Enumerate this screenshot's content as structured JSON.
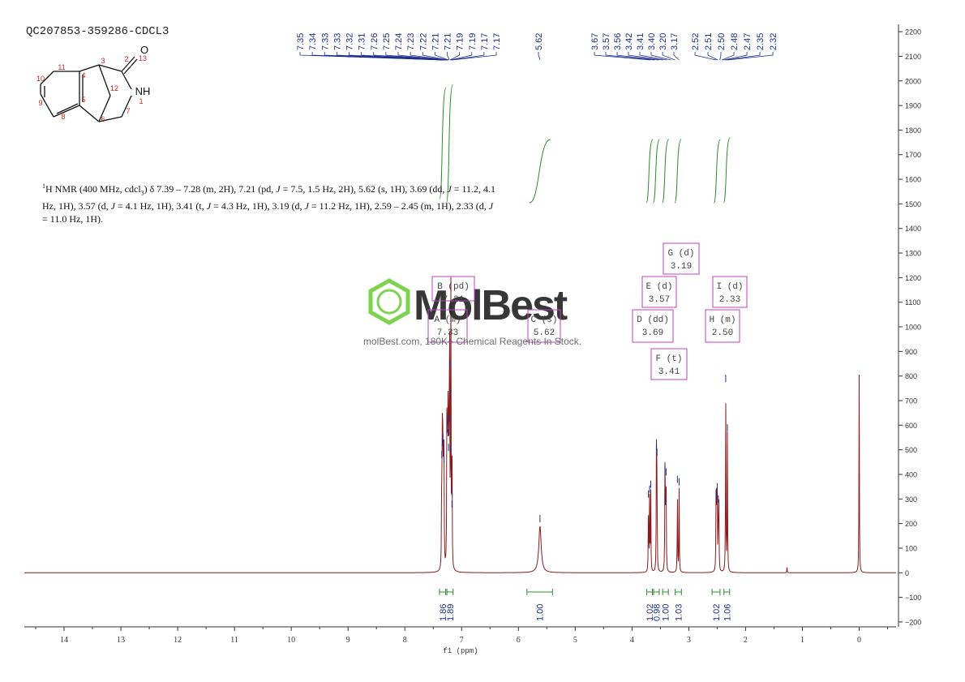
{
  "sample_id": "QC207853-359286-CDCL3",
  "nmr_description": {
    "p1": "H NMR (400 MHz, cdcl",
    "sub3": "3",
    "p2": ") δ 7.39 – 7.28 (m, 2H), 7.21 (pd, ",
    "j": "J",
    "p3": " = 7.5, 1.5 Hz, 2H), 5.62 (s, 1H), 3.69 (dd, ",
    "p4": " = 11.2, 4.1 Hz, 1H), 3.57 (d, ",
    "p5": " = 4.1 Hz, 1H), 3.41 (t, ",
    "p6": " = 4.3 Hz, 1H), 3.19 (d, ",
    "p7": " = 11.2 Hz, 1H), 2.59 – 2.45 (m, 1H), 2.33 (d, ",
    "p8": " = 11.0 Hz, 1H).",
    "sup1": "1"
  },
  "watermark": {
    "logo": "MolBest",
    "subtitle": "molBest.com, 180K+ Chemical Reagents In Stock."
  },
  "molecule": {
    "atoms": [
      {
        "n": "1",
        "type": "N"
      },
      {
        "n": "2"
      },
      {
        "n": "3"
      },
      {
        "n": "4"
      },
      {
        "n": "5"
      },
      {
        "n": "6"
      },
      {
        "n": "7"
      },
      {
        "n": "8"
      },
      {
        "n": "9"
      },
      {
        "n": "10"
      },
      {
        "n": "11"
      },
      {
        "n": "12"
      },
      {
        "n": "13",
        "type": "O"
      }
    ],
    "labels": {
      "O": "O",
      "NH": "NH"
    }
  },
  "colors": {
    "spectrum": "#8b1a1a",
    "peak_labels": "#1f2f8f",
    "integrals": "#2e8b2e",
    "multiplet_boxes": "#c040c0",
    "atom_numbers": "#cc2222",
    "axis": "#333333",
    "logo": "#6fcf3b"
  },
  "chart_data": {
    "type": "line",
    "xlabel": "f1 (ppm)",
    "xlim": [
      14.7,
      -0.65
    ],
    "ylim": [
      -220,
      2230
    ],
    "x_ticks": [
      14,
      13,
      12,
      11,
      10,
      9,
      8,
      7,
      6,
      5,
      4,
      3,
      2,
      1,
      0
    ],
    "y_ticks": [
      2200,
      2100,
      2000,
      1900,
      1800,
      1700,
      1600,
      1500,
      1400,
      1300,
      1200,
      1100,
      1000,
      900,
      800,
      700,
      600,
      500,
      400,
      300,
      200,
      100,
      0,
      -100,
      -200
    ],
    "peaks": [
      {
        "ppm": 7.35,
        "h": 450
      },
      {
        "ppm": 7.34,
        "h": 500
      },
      {
        "ppm": 7.33,
        "h": 520
      },
      {
        "ppm": 7.32,
        "h": 480
      },
      {
        "ppm": 7.31,
        "h": 430
      },
      {
        "ppm": 7.26,
        "h": 560
      },
      {
        "ppm": 7.25,
        "h": 580
      },
      {
        "ppm": 7.24,
        "h": 540
      },
      {
        "ppm": 7.23,
        "h": 480
      },
      {
        "ppm": 7.22,
        "h": 600
      },
      {
        "ppm": 7.21,
        "h": 820
      },
      {
        "ppm": 7.19,
        "h": 700
      },
      {
        "ppm": 7.19,
        "h": 470
      },
      {
        "ppm": 7.17,
        "h": 300
      },
      {
        "ppm": 7.17,
        "h": 250
      },
      {
        "ppm": 5.62,
        "h": 190
      },
      {
        "ppm": 3.71,
        "h": 290
      },
      {
        "ppm": 3.69,
        "h": 310
      },
      {
        "ppm": 3.67,
        "h": 330
      },
      {
        "ppm": 3.57,
        "h": 480
      },
      {
        "ppm": 3.56,
        "h": 460
      },
      {
        "ppm": 3.42,
        "h": 400
      },
      {
        "ppm": 3.41,
        "h": 260
      },
      {
        "ppm": 3.4,
        "h": 380
      },
      {
        "ppm": 3.2,
        "h": 350
      },
      {
        "ppm": 3.17,
        "h": 340
      },
      {
        "ppm": 2.52,
        "h": 280
      },
      {
        "ppm": 2.51,
        "h": 300
      },
      {
        "ppm": 2.5,
        "h": 320
      },
      {
        "ppm": 2.48,
        "h": 270
      },
      {
        "ppm": 2.47,
        "h": 250
      },
      {
        "ppm": 2.35,
        "h": 760
      },
      {
        "ppm": 2.32,
        "h": 560
      },
      {
        "ppm": 1.27,
        "h": 22
      },
      {
        "ppm": 0.0,
        "h": 810
      }
    ],
    "peak_labels": [
      "7.35",
      "7.34",
      "7.33",
      "7.33",
      "7.32",
      "7.31",
      "7.26",
      "7.25",
      "7.24",
      "7.23",
      "7.22",
      "7.21",
      "7.21",
      "7.19",
      "7.19",
      "7.17",
      "7.17",
      "5.62",
      "3.67",
      "3.57",
      "3.56",
      "3.42",
      "3.41",
      "3.40",
      "3.20",
      "3.17",
      "2.52",
      "2.51",
      "2.50",
      "2.48",
      "2.47",
      "2.35",
      "2.32"
    ],
    "integrals": [
      {
        "label": "1.86",
        "from": 7.39,
        "to": 7.28
      },
      {
        "label": "1.89",
        "from": 7.26,
        "to": 7.15
      },
      {
        "label": "1.00",
        "from": 5.85,
        "to": 5.4
      },
      {
        "label": "1.02",
        "from": 3.74,
        "to": 3.64
      },
      {
        "label": "0.98",
        "from": 3.62,
        "to": 3.52
      },
      {
        "label": "1.00",
        "from": 3.46,
        "to": 3.36
      },
      {
        "label": "1.03",
        "from": 3.24,
        "to": 3.13
      },
      {
        "label": "1.02",
        "from": 2.59,
        "to": 2.45
      },
      {
        "label": "1.06",
        "from": 2.38,
        "to": 2.28
      }
    ],
    "multiplets": [
      {
        "name": "A (m)",
        "value": "7.33"
      },
      {
        "name": "B (pd)",
        "value": "7.21"
      },
      {
        "name": "C (s)",
        "value": "5.62"
      },
      {
        "name": "D (dd)",
        "value": "3.69"
      },
      {
        "name": "E (d)",
        "value": "3.57"
      },
      {
        "name": "F (t)",
        "value": "3.41"
      },
      {
        "name": "G (d)",
        "value": "3.19"
      },
      {
        "name": "H (m)",
        "value": "2.50"
      },
      {
        "name": "I (d)",
        "value": "2.33"
      }
    ]
  }
}
